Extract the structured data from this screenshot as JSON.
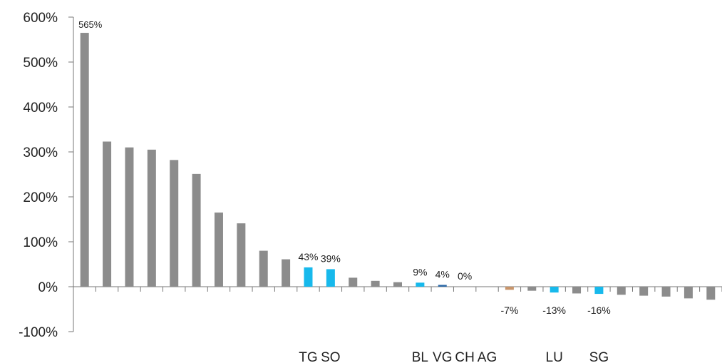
{
  "chart_data": {
    "type": "bar",
    "ylim": [
      -100,
      600
    ],
    "yticks": [
      600,
      500,
      400,
      300,
      200,
      100,
      0,
      -100
    ],
    "ytick_labels": [
      "600%",
      "500%",
      "400%",
      "300%",
      "200%",
      "100%",
      "0%",
      "-100%"
    ],
    "grid": false,
    "colors": {
      "default": "#8c8c8c",
      "highlight": "#17b9ec",
      "dark_blue": "#2e6aa8",
      "orange": "#c8956b"
    },
    "bars": [
      {
        "value": 565,
        "color": "default",
        "label": "565%",
        "category": ""
      },
      {
        "value": 323,
        "color": "default",
        "label": "",
        "category": ""
      },
      {
        "value": 310,
        "color": "default",
        "label": "",
        "category": ""
      },
      {
        "value": 305,
        "color": "default",
        "label": "",
        "category": ""
      },
      {
        "value": 282,
        "color": "default",
        "label": "",
        "category": ""
      },
      {
        "value": 251,
        "color": "default",
        "label": "",
        "category": ""
      },
      {
        "value": 165,
        "color": "default",
        "label": "",
        "category": ""
      },
      {
        "value": 141,
        "color": "default",
        "label": "",
        "category": ""
      },
      {
        "value": 80,
        "color": "default",
        "label": "",
        "category": ""
      },
      {
        "value": 61,
        "color": "default",
        "label": "",
        "category": ""
      },
      {
        "value": 43,
        "color": "highlight",
        "label": "43%",
        "category": "TG"
      },
      {
        "value": 39,
        "color": "highlight",
        "label": "39%",
        "category": "SO"
      },
      {
        "value": 20,
        "color": "default",
        "label": "",
        "category": ""
      },
      {
        "value": 13,
        "color": "default",
        "label": "",
        "category": ""
      },
      {
        "value": 10,
        "color": "default",
        "label": "",
        "category": ""
      },
      {
        "value": 9,
        "color": "highlight",
        "label": "9%",
        "category": "BL"
      },
      {
        "value": 4,
        "color": "dark_blue",
        "label": "4%",
        "category": "VG"
      },
      {
        "value": 0,
        "color": "default",
        "label": "0%",
        "category": "CH"
      },
      {
        "value": 0,
        "color": "default",
        "label": "",
        "category": "AG"
      },
      {
        "value": -7,
        "color": "orange",
        "label": "-7%",
        "category": ""
      },
      {
        "value": -9,
        "color": "default",
        "label": "",
        "category": ""
      },
      {
        "value": -13,
        "color": "highlight",
        "label": "-13%",
        "category": "LU"
      },
      {
        "value": -15,
        "color": "default",
        "label": "",
        "category": ""
      },
      {
        "value": -16,
        "color": "highlight",
        "label": "-16%",
        "category": "SG"
      },
      {
        "value": -18,
        "color": "default",
        "label": "",
        "category": ""
      },
      {
        "value": -20,
        "color": "default",
        "label": "",
        "category": ""
      },
      {
        "value": -22,
        "color": "default",
        "label": "",
        "category": ""
      },
      {
        "value": -26,
        "color": "default",
        "label": "",
        "category": ""
      },
      {
        "value": -29,
        "color": "default",
        "label": "",
        "category": ""
      }
    ]
  }
}
